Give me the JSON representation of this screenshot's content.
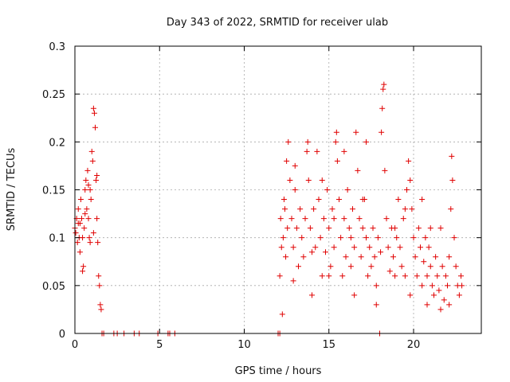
{
  "chart_data": {
    "type": "scatter",
    "title": "Day 343 of 2022, SRMTID for receiver ulab",
    "xlabel": "GPS time / hours",
    "ylabel": "SRMTID / TECUs",
    "xlim": [
      0,
      24
    ],
    "ylim": [
      0,
      0.3
    ],
    "xticks": [
      0,
      5,
      10,
      15,
      20
    ],
    "xtick_labels": [
      "0",
      "5",
      "10",
      "15",
      "20"
    ],
    "yticks": [
      0,
      0.05,
      0.1,
      0.15,
      0.2,
      0.25,
      0.3
    ],
    "ytick_labels": [
      "0",
      "0.05",
      "0.1",
      "0.15",
      "0.2",
      "0.25",
      "0.3"
    ],
    "grid": true,
    "marker": "+",
    "marker_color": "#e00000",
    "series": [
      {
        "name": "SRMTID",
        "points": [
          [
            0.0,
            0.11
          ],
          [
            0.05,
            0.105
          ],
          [
            0.1,
            0.12
          ],
          [
            0.15,
            0.095
          ],
          [
            0.2,
            0.13
          ],
          [
            0.25,
            0.1
          ],
          [
            0.3,
            0.085
          ],
          [
            0.35,
            0.14
          ],
          [
            0.4,
            0.12
          ],
          [
            0.45,
            0.065
          ],
          [
            0.5,
            0.07
          ],
          [
            0.55,
            0.11
          ],
          [
            0.6,
            0.15
          ],
          [
            0.65,
            0.16
          ],
          [
            0.7,
            0.13
          ],
          [
            0.75,
            0.17
          ],
          [
            0.8,
            0.12
          ],
          [
            0.85,
            0.1
          ],
          [
            0.9,
            0.15
          ],
          [
            0.95,
            0.14
          ],
          [
            1.0,
            0.19
          ],
          [
            1.05,
            0.18
          ],
          [
            1.1,
            0.235
          ],
          [
            1.15,
            0.23
          ],
          [
            1.2,
            0.215
          ],
          [
            1.25,
            0.16
          ],
          [
            1.3,
            0.12
          ],
          [
            1.35,
            0.095
          ],
          [
            1.4,
            0.06
          ],
          [
            1.45,
            0.05
          ],
          [
            1.5,
            0.03
          ],
          [
            1.55,
            0.025
          ],
          [
            0.3,
            0.115
          ],
          [
            0.6,
            0.125
          ],
          [
            0.9,
            0.095
          ],
          [
            1.1,
            0.105
          ],
          [
            0.45,
            0.1
          ],
          [
            0.8,
            0.155
          ],
          [
            1.3,
            0.165
          ],
          [
            0.2,
            0.115
          ],
          [
            1.6,
            0.0
          ],
          [
            1.7,
            0.0
          ],
          [
            2.3,
            0.0
          ],
          [
            2.5,
            0.0
          ],
          [
            2.9,
            0.0
          ],
          [
            3.5,
            0.0
          ],
          [
            3.8,
            0.0
          ],
          [
            4.9,
            0.0
          ],
          [
            5.5,
            0.0
          ],
          [
            5.6,
            0.0
          ],
          [
            5.9,
            0.0
          ],
          [
            12.0,
            0.0
          ],
          [
            12.1,
            0.0
          ],
          [
            12.1,
            0.06
          ],
          [
            12.15,
            0.12
          ],
          [
            12.2,
            0.09
          ],
          [
            12.25,
            0.02
          ],
          [
            12.3,
            0.1
          ],
          [
            12.35,
            0.14
          ],
          [
            12.4,
            0.13
          ],
          [
            12.45,
            0.08
          ],
          [
            12.5,
            0.18
          ],
          [
            12.55,
            0.11
          ],
          [
            12.6,
            0.2
          ],
          [
            12.7,
            0.16
          ],
          [
            12.8,
            0.12
          ],
          [
            12.9,
            0.09
          ],
          [
            13.0,
            0.15
          ],
          [
            13.1,
            0.11
          ],
          [
            13.2,
            0.07
          ],
          [
            13.3,
            0.13
          ],
          [
            13.4,
            0.1
          ],
          [
            13.5,
            0.08
          ],
          [
            13.6,
            0.12
          ],
          [
            13.7,
            0.19
          ],
          [
            13.75,
            0.2
          ],
          [
            13.8,
            0.16
          ],
          [
            13.9,
            0.11
          ],
          [
            14.0,
            0.085
          ],
          [
            14.1,
            0.13
          ],
          [
            14.2,
            0.09
          ],
          [
            14.3,
            0.19
          ],
          [
            14.4,
            0.14
          ],
          [
            14.5,
            0.1
          ],
          [
            14.6,
            0.06
          ],
          [
            14.7,
            0.12
          ],
          [
            14.8,
            0.085
          ],
          [
            14.9,
            0.15
          ],
          [
            15.0,
            0.11
          ],
          [
            15.1,
            0.07
          ],
          [
            15.2,
            0.13
          ],
          [
            15.3,
            0.09
          ],
          [
            15.4,
            0.2
          ],
          [
            15.45,
            0.21
          ],
          [
            15.5,
            0.18
          ],
          [
            15.6,
            0.14
          ],
          [
            15.7,
            0.1
          ],
          [
            15.8,
            0.06
          ],
          [
            15.9,
            0.12
          ],
          [
            16.0,
            0.08
          ],
          [
            16.1,
            0.15
          ],
          [
            16.2,
            0.11
          ],
          [
            16.3,
            0.07
          ],
          [
            16.4,
            0.13
          ],
          [
            16.5,
            0.09
          ],
          [
            16.6,
            0.21
          ],
          [
            16.7,
            0.17
          ],
          [
            16.8,
            0.12
          ],
          [
            16.9,
            0.08
          ],
          [
            17.0,
            0.11
          ],
          [
            17.1,
            0.14
          ],
          [
            17.2,
            0.1
          ],
          [
            17.3,
            0.06
          ],
          [
            17.4,
            0.09
          ],
          [
            17.5,
            0.07
          ],
          [
            17.6,
            0.11
          ],
          [
            17.7,
            0.08
          ],
          [
            17.8,
            0.05
          ],
          [
            17.9,
            0.1
          ],
          [
            18.0,
            0.0
          ],
          [
            18.05,
            0.085
          ],
          [
            18.1,
            0.21
          ],
          [
            18.15,
            0.235
          ],
          [
            18.2,
            0.255
          ],
          [
            18.25,
            0.26
          ],
          [
            18.3,
            0.17
          ],
          [
            18.4,
            0.12
          ],
          [
            18.5,
            0.09
          ],
          [
            18.6,
            0.065
          ],
          [
            18.7,
            0.11
          ],
          [
            18.8,
            0.08
          ],
          [
            18.9,
            0.06
          ],
          [
            19.0,
            0.1
          ],
          [
            19.1,
            0.14
          ],
          [
            19.2,
            0.09
          ],
          [
            19.3,
            0.07
          ],
          [
            19.4,
            0.12
          ],
          [
            19.5,
            0.06
          ],
          [
            19.6,
            0.15
          ],
          [
            19.7,
            0.18
          ],
          [
            19.8,
            0.16
          ],
          [
            19.9,
            0.13
          ],
          [
            20.0,
            0.1
          ],
          [
            20.1,
            0.08
          ],
          [
            20.2,
            0.06
          ],
          [
            20.3,
            0.11
          ],
          [
            20.4,
            0.09
          ],
          [
            20.5,
            0.14
          ],
          [
            20.6,
            0.075
          ],
          [
            20.7,
            0.1
          ],
          [
            20.8,
            0.06
          ],
          [
            20.9,
            0.09
          ],
          [
            21.0,
            0.07
          ],
          [
            21.1,
            0.05
          ],
          [
            21.2,
            0.04
          ],
          [
            21.3,
            0.08
          ],
          [
            21.4,
            0.06
          ],
          [
            21.5,
            0.045
          ],
          [
            21.6,
            0.11
          ],
          [
            21.7,
            0.07
          ],
          [
            21.8,
            0.035
          ],
          [
            21.9,
            0.06
          ],
          [
            22.0,
            0.05
          ],
          [
            22.1,
            0.03
          ],
          [
            22.2,
            0.13
          ],
          [
            22.25,
            0.185
          ],
          [
            22.3,
            0.16
          ],
          [
            22.4,
            0.1
          ],
          [
            22.5,
            0.07
          ],
          [
            22.6,
            0.05
          ],
          [
            22.7,
            0.04
          ],
          [
            22.8,
            0.06
          ],
          [
            22.85,
            0.05
          ],
          [
            14.6,
            0.16
          ],
          [
            15.3,
            0.12
          ],
          [
            16.3,
            0.1
          ],
          [
            17.0,
            0.14
          ],
          [
            17.8,
            0.03
          ],
          [
            19.8,
            0.04
          ],
          [
            20.8,
            0.03
          ],
          [
            21.6,
            0.025
          ],
          [
            13.0,
            0.175
          ],
          [
            15.9,
            0.19
          ],
          [
            17.2,
            0.2
          ],
          [
            18.9,
            0.11
          ],
          [
            19.5,
            0.13
          ],
          [
            16.5,
            0.04
          ],
          [
            15.0,
            0.06
          ],
          [
            14.0,
            0.04
          ],
          [
            12.9,
            0.055
          ],
          [
            20.5,
            0.05
          ],
          [
            22.1,
            0.08
          ],
          [
            21.0,
            0.11
          ]
        ]
      }
    ]
  }
}
